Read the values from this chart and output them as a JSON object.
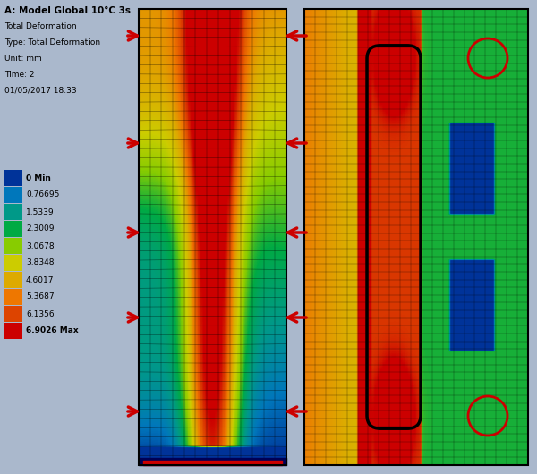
{
  "title": "A: Model Global 10°C 3s",
  "subtitle_lines": [
    "Total Deformation",
    "Type: Total Deformation",
    "Unit: mm",
    "Time: 2",
    "01/05/2017 18:33"
  ],
  "legend_values": [
    "6.9026 Max",
    "6.1356",
    "5.3687",
    "4.6017",
    "3.8348",
    "3.0678",
    "2.3009",
    "1.5339",
    "0.76695",
    "0 Min"
  ],
  "legend_colors": [
    "#cc0000",
    "#dd4400",
    "#ee7700",
    "#ddaa00",
    "#cccc00",
    "#88cc00",
    "#00aa44",
    "#009988",
    "#0077bb",
    "#003399"
  ],
  "bg_color": "#aab8cc",
  "border_color": "#000000",
  "arrow_color": "#cc0000",
  "circle_color": "#cc0000"
}
